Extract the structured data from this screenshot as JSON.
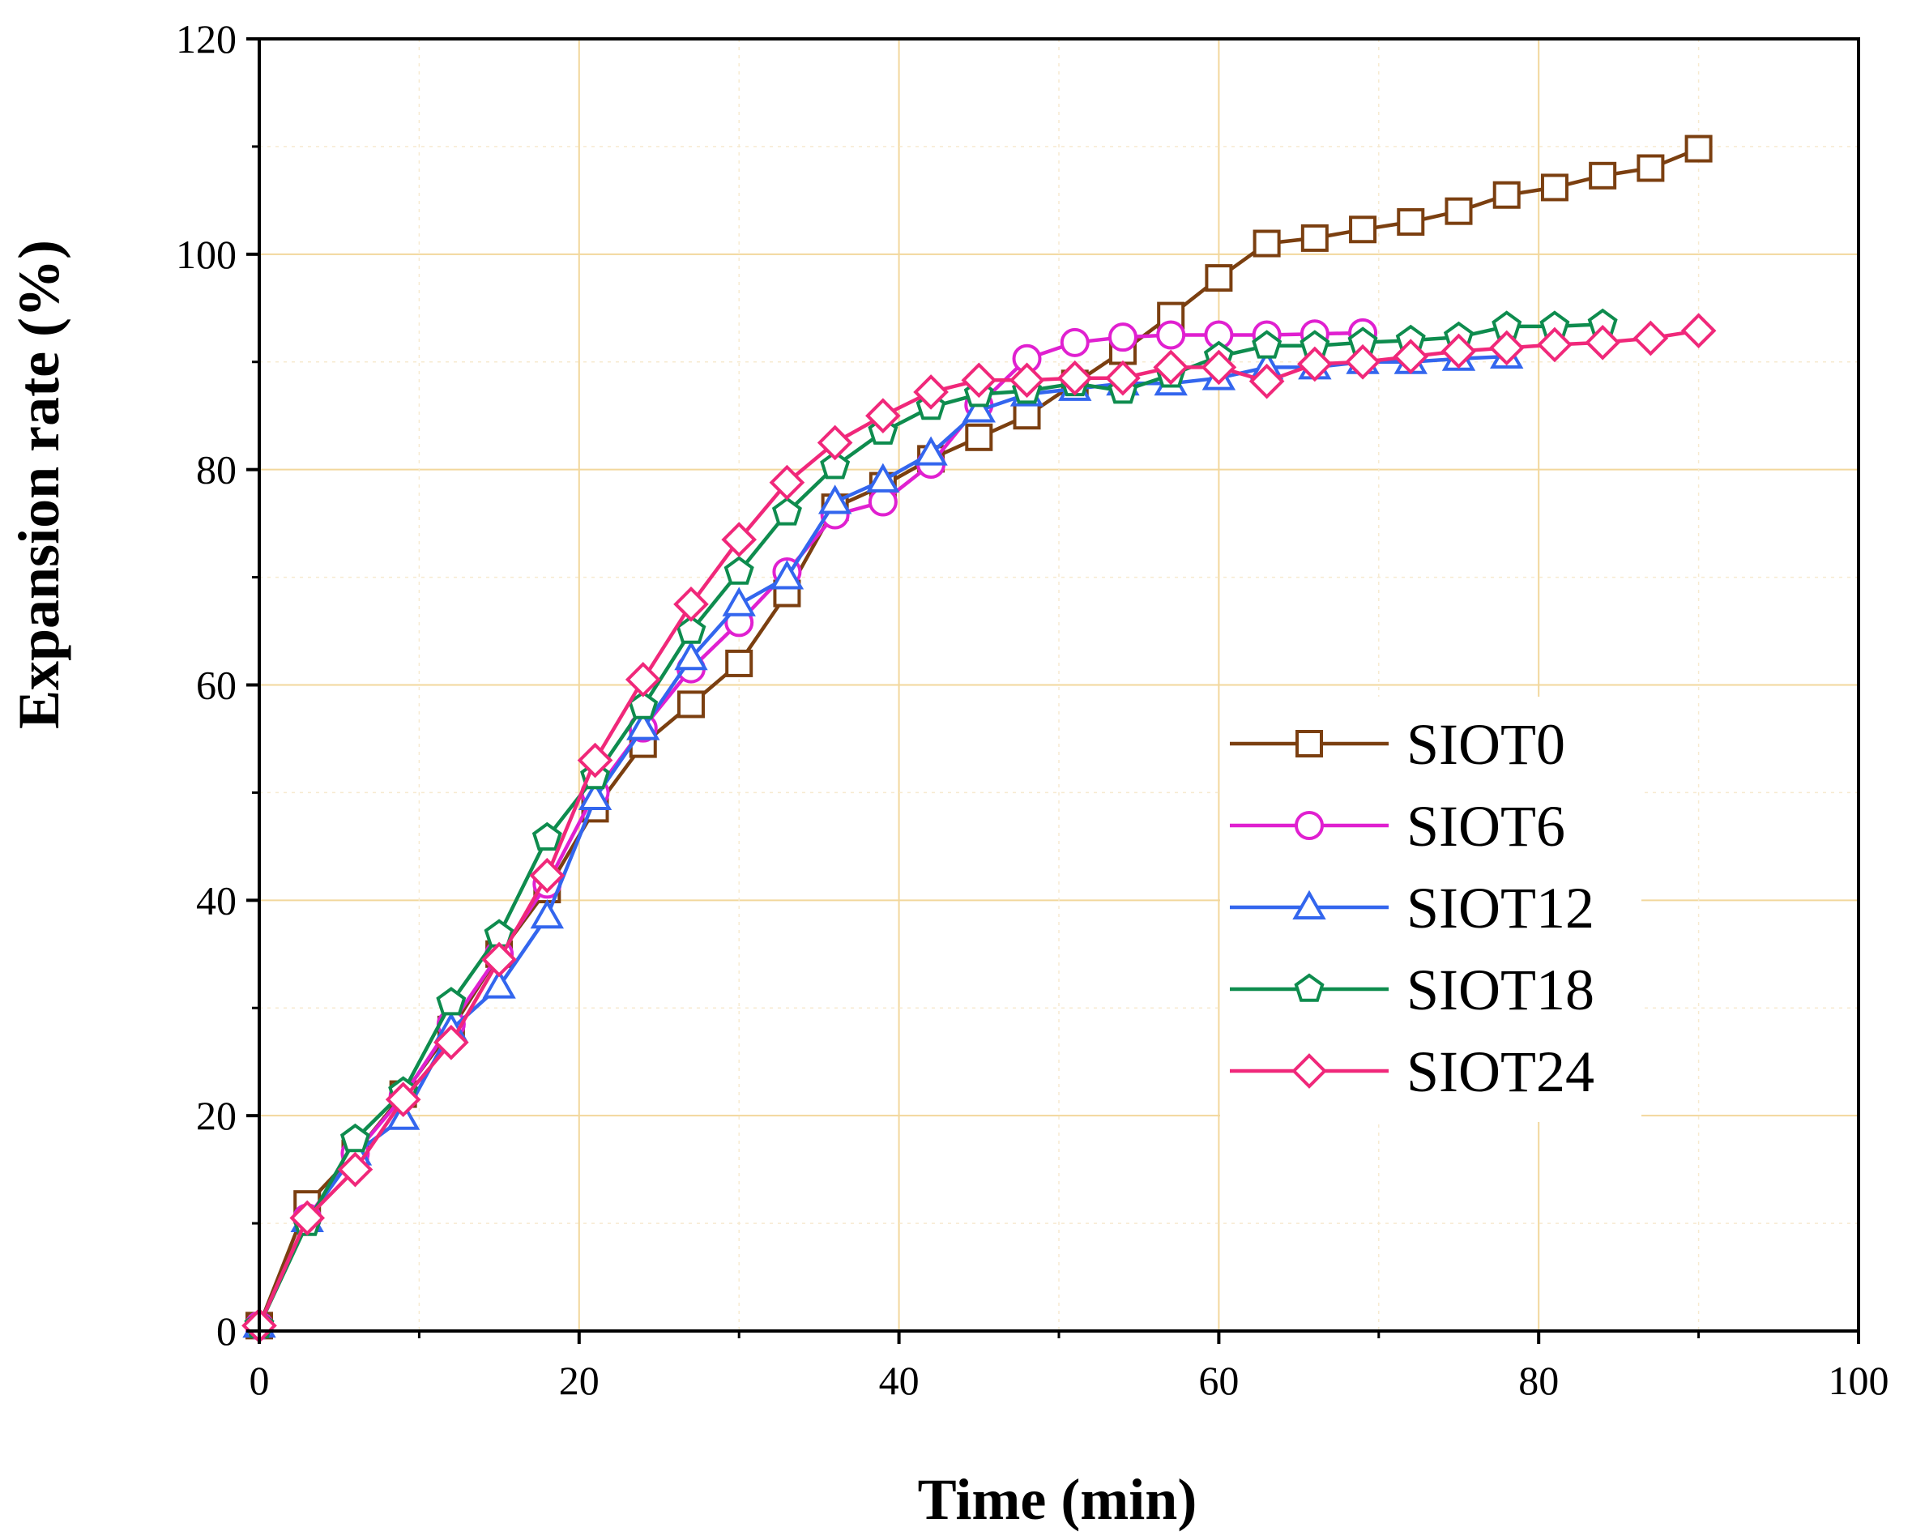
{
  "chart_data": {
    "type": "line",
    "title": "",
    "xlabel": "Time (min)",
    "ylabel": "Expansion rate (%)",
    "xlim": [
      0,
      100
    ],
    "ylim": [
      0,
      120
    ],
    "xticks": [
      0,
      20,
      40,
      60,
      80,
      100
    ],
    "yticks": [
      0,
      20,
      40,
      60,
      80,
      100,
      120
    ],
    "grid": true,
    "legend_position": "center-right",
    "series": [
      {
        "name": "SIOT0",
        "color": "#7B3F10",
        "marker": "square",
        "x": [
          0,
          3,
          6,
          9,
          12,
          15,
          18,
          21,
          24,
          27,
          30,
          33,
          36,
          39,
          42,
          45,
          48,
          51,
          54,
          57,
          60,
          63,
          66,
          69,
          72,
          75,
          78,
          81,
          84,
          87,
          90
        ],
        "y": [
          0.5,
          11.8,
          16.5,
          22,
          28,
          35,
          41,
          48.5,
          54.5,
          58.2,
          62,
          68.5,
          76.5,
          78.5,
          81,
          83,
          85,
          88,
          91,
          94.3,
          97.8,
          101,
          101.5,
          102.3,
          103,
          104,
          105.5,
          106.2,
          107.3,
          108,
          109.8
        ]
      },
      {
        "name": "SIOT6",
        "color": "#E020D0",
        "marker": "circle",
        "x": [
          0,
          3,
          6,
          9,
          12,
          15,
          18,
          21,
          24,
          27,
          30,
          33,
          36,
          39,
          42,
          45,
          48,
          51,
          54,
          57,
          60,
          63,
          66,
          69
        ],
        "y": [
          0.5,
          10.5,
          16.5,
          21.8,
          28.5,
          35,
          41.5,
          50,
          56,
          61.5,
          65.8,
          70.5,
          75.8,
          77,
          80.5,
          86,
          90.3,
          91.8,
          92.3,
          92.5,
          92.5,
          92.5,
          92.6,
          92.7
        ]
      },
      {
        "name": "SIOT12",
        "color": "#3366EE",
        "marker": "triangle",
        "x": [
          0,
          3,
          6,
          9,
          12,
          15,
          18,
          21,
          24,
          27,
          30,
          33,
          36,
          39,
          42,
          45,
          48,
          51,
          54,
          57,
          60,
          63,
          66,
          69,
          72,
          75,
          78
        ],
        "y": [
          0.5,
          10.3,
          16.5,
          19.8,
          28,
          32,
          38.5,
          49.5,
          56,
          62.5,
          67.5,
          70,
          77,
          79,
          81.5,
          85.5,
          87,
          87.5,
          88,
          88,
          88.5,
          89.5,
          89.5,
          90,
          90,
          90.3,
          90.5
        ]
      },
      {
        "name": "SIOT18",
        "color": "#0E8C4E",
        "marker": "pentagon",
        "x": [
          0,
          3,
          6,
          9,
          12,
          15,
          18,
          21,
          24,
          27,
          30,
          33,
          36,
          39,
          42,
          45,
          48,
          51,
          54,
          57,
          60,
          63,
          66,
          69,
          72,
          75,
          78,
          81,
          84
        ],
        "y": [
          0.5,
          10,
          17.8,
          22.2,
          30.5,
          36.8,
          45.8,
          51.5,
          58,
          65,
          70.5,
          76,
          80.3,
          83.5,
          85.8,
          87,
          87.3,
          88,
          87.3,
          88.8,
          90.5,
          91.5,
          91.5,
          91.8,
          92,
          92.3,
          93.3,
          93.3,
          93.5
        ]
      },
      {
        "name": "SIOT24",
        "color": "#F0287A",
        "marker": "diamond",
        "x": [
          0,
          3,
          6,
          9,
          12,
          15,
          18,
          21,
          24,
          27,
          30,
          33,
          36,
          39,
          42,
          45,
          48,
          51,
          54,
          57,
          60,
          63,
          66,
          69,
          72,
          75,
          78,
          81,
          84,
          87,
          90
        ],
        "y": [
          0.5,
          10.5,
          15,
          21.5,
          26.8,
          34.5,
          42.3,
          53,
          60.5,
          67.5,
          73.5,
          78.8,
          82.5,
          85,
          87.2,
          88.3,
          88.3,
          88.5,
          88.5,
          89.5,
          89.5,
          88.2,
          89.8,
          90,
          90.5,
          91,
          91.3,
          91.6,
          91.8,
          92.2,
          92.9
        ]
      }
    ]
  }
}
